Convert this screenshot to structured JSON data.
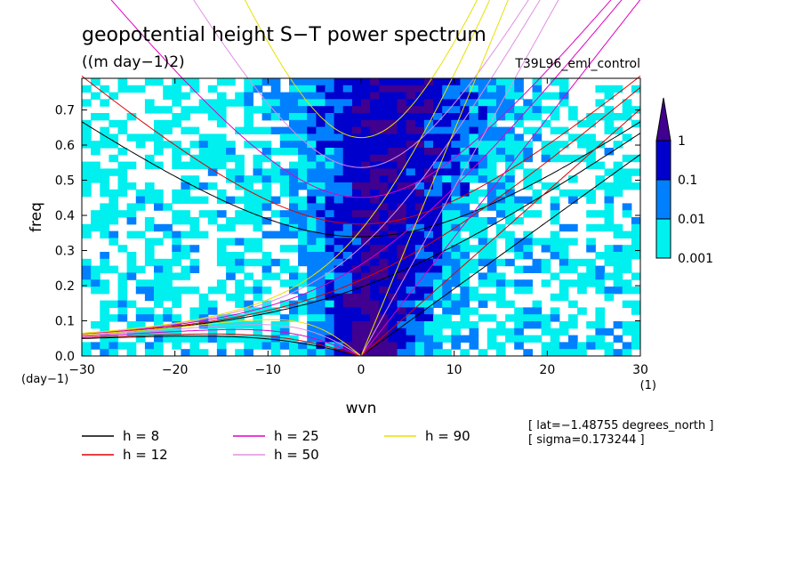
{
  "chart_data": {
    "type": "heatmap",
    "title": "geopotential height S−T power spectrum",
    "units": "((m day−1)2)",
    "run_label": "T39L96_eml_control",
    "xlabel": "wvn",
    "ylabel": "freq",
    "x_unit": "(1)",
    "y_unit": "(day−1)",
    "xlim": [
      -30,
      30
    ],
    "ylim": [
      0,
      0.79
    ],
    "xticks": [
      -30,
      -20,
      -10,
      0,
      10,
      20,
      30
    ],
    "xtick_labels": [
      "−30",
      "−20",
      "−10",
      "0",
      "10",
      "20",
      "30"
    ],
    "yticks": [
      0,
      0.1,
      0.2,
      0.3,
      0.4,
      0.5,
      0.6,
      0.7
    ],
    "ytick_labels": [
      "0.0",
      "0.1",
      "0.2",
      "0.3",
      "0.4",
      "0.5",
      "0.6",
      "0.7"
    ],
    "contour_levels": [
      0.001,
      0.01,
      0.1,
      1
    ],
    "colorbar": {
      "labels": [
        "1",
        "0.1",
        "0.01",
        "0.001"
      ],
      "colors": [
        "#00f0f0",
        "#0080ff",
        "#0000cc",
        "#400090"
      ]
    },
    "dispersion_curves": [
      {
        "name": "h = 8",
        "h": 8,
        "color": "#000000"
      },
      {
        "name": "h = 12",
        "h": 12,
        "color": "#e00000"
      },
      {
        "name": "h = 25",
        "h": 25,
        "color": "#e000c0"
      },
      {
        "name": "h = 50",
        "h": 50,
        "color": "#e090e0"
      },
      {
        "name": "h = 90",
        "h": 90,
        "color": "#e8e000"
      }
    ],
    "annotations": [
      "[ lat=−1.48755 degrees_north ]",
      "[ sigma=0.173244 ]"
    ]
  }
}
